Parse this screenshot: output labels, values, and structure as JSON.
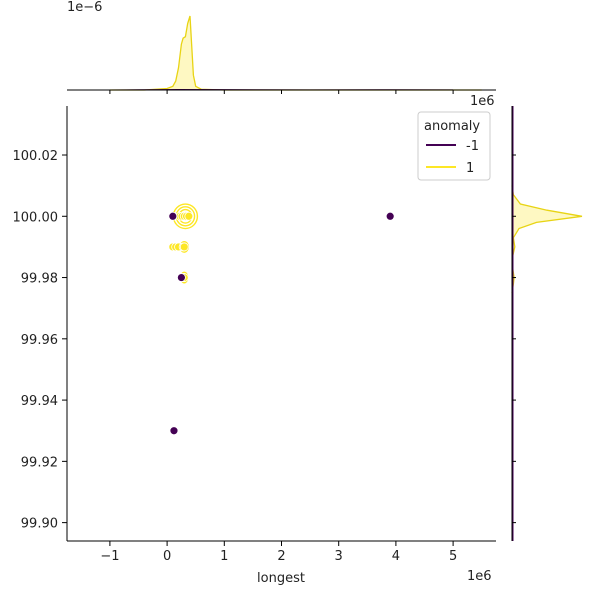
{
  "chart_data": {
    "type": "scatter",
    "subtype": "jointplot",
    "xlabel": "longest",
    "ylabel": "",
    "x_offset_label": "1e6",
    "y_offset_label": "1e6",
    "top_marginal_offset_label": "1e−6",
    "xlim": [
      -1.75,
      5.75
    ],
    "ylim": [
      99.894,
      100.036
    ],
    "x_ticks": [
      -1,
      0,
      1,
      2,
      3,
      4,
      5
    ],
    "x_tick_labels": [
      "−1",
      "0",
      "1",
      "2",
      "3",
      "4",
      "5"
    ],
    "y_ticks": [
      99.9,
      99.92,
      99.94,
      99.96,
      99.98,
      100.0,
      100.02
    ],
    "y_tick_labels": [
      "99.90",
      "99.92",
      "99.94",
      "99.96",
      "99.98",
      "100.00",
      "100.02"
    ],
    "grid": false,
    "legend": {
      "title": "anomaly",
      "placement": "top-right",
      "entries": [
        {
          "label": "-1",
          "color": "#440154"
        },
        {
          "label": "1",
          "color": "#fde725"
        }
      ]
    },
    "series": [
      {
        "name": "-1",
        "color": "#440154",
        "points": [
          {
            "x": 0.1,
            "y": 100.0
          },
          {
            "x": 3.9,
            "y": 100.0
          },
          {
            "x": 0.25,
            "y": 99.98
          },
          {
            "x": 0.12,
            "y": 99.93
          }
        ]
      },
      {
        "name": "1",
        "color": "#fde725",
        "points": [
          {
            "x": 0.22,
            "y": 100.0
          },
          {
            "x": 0.26,
            "y": 100.0
          },
          {
            "x": 0.3,
            "y": 100.0
          },
          {
            "x": 0.34,
            "y": 100.0
          },
          {
            "x": 0.38,
            "y": 100.0
          },
          {
            "x": 0.1,
            "y": 99.99
          },
          {
            "x": 0.15,
            "y": 99.99
          },
          {
            "x": 0.2,
            "y": 99.99
          },
          {
            "x": 0.28,
            "y": 99.99
          },
          {
            "x": 0.3,
            "y": 99.99
          },
          {
            "x": 0.28,
            "y": 99.98
          },
          {
            "x": 0.3,
            "y": 99.98
          }
        ]
      }
    ],
    "kde_contours": [
      {
        "series": "1",
        "center": [
          0.32,
          100.0
        ],
        "radii": [
          [
            0.06,
            0.0012
          ],
          [
            0.11,
            0.0022
          ],
          [
            0.16,
            0.0031
          ],
          [
            0.21,
            0.004
          ]
        ]
      },
      {
        "series": "1",
        "center": [
          0.3,
          99.99
        ],
        "radii": [
          [
            0.04,
            0.001
          ],
          [
            0.07,
            0.0017
          ]
        ]
      },
      {
        "series": "1",
        "center": [
          0.3,
          99.98
        ],
        "radii": [
          [
            0.03,
            0.001
          ],
          [
            0.06,
            0.0017
          ]
        ]
      }
    ],
    "marginal_x": {
      "series": "1",
      "curve": [
        [
          -1.0,
          0.0
        ],
        [
          -0.4,
          0.0
        ],
        [
          -0.2,
          0.01
        ],
        [
          0.0,
          0.02
        ],
        [
          0.1,
          0.05
        ],
        [
          0.15,
          0.12
        ],
        [
          0.2,
          0.3
        ],
        [
          0.25,
          0.62
        ],
        [
          0.28,
          0.7
        ],
        [
          0.32,
          0.72
        ],
        [
          0.36,
          0.9
        ],
        [
          0.4,
          1.0
        ],
        [
          0.43,
          0.6
        ],
        [
          0.46,
          0.2
        ],
        [
          0.5,
          0.05
        ],
        [
          0.6,
          0.01
        ],
        [
          1.0,
          0.0
        ],
        [
          5.5,
          0.0
        ]
      ],
      "minor_series": "-1",
      "minor_curve": [
        [
          -1.0,
          0.0
        ],
        [
          -0.5,
          0.003
        ],
        [
          0.2,
          0.006
        ],
        [
          1.0,
          0.004
        ],
        [
          2.5,
          0.002
        ],
        [
          3.9,
          0.003
        ],
        [
          5.0,
          0.001
        ]
      ]
    },
    "marginal_y": {
      "series": "1",
      "curve": [
        [
          99.975,
          0.0
        ],
        [
          99.978,
          0.02
        ],
        [
          99.98,
          0.03
        ],
        [
          99.983,
          0.01
        ],
        [
          99.987,
          0.01
        ],
        [
          99.99,
          0.04
        ],
        [
          99.993,
          0.02
        ],
        [
          99.996,
          0.1
        ],
        [
          99.998,
          0.35
        ],
        [
          100.0,
          1.0
        ],
        [
          100.002,
          0.5
        ],
        [
          100.004,
          0.12
        ],
        [
          100.007,
          0.02
        ],
        [
          100.01,
          0.0
        ]
      ]
    }
  }
}
